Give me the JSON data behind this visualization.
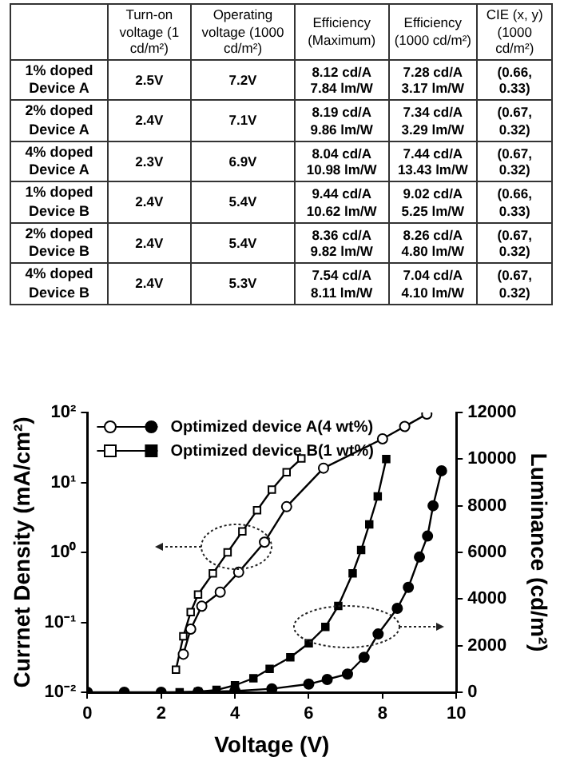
{
  "chart_data": [
    {
      "type": "other",
      "categories": [
        null,
        "Turn-on voltage (1 cd/m²)",
        "Operating voltage (1000 cd/m²)",
        "Efficiency (Maximum)",
        "Efficiency (1000 cd/m²)",
        "CIE (x, y) (1000 cd/m²)"
      ],
      "y_categories": [
        "1% doped Device A",
        "2% doped Device A",
        "4% doped Device A",
        "1% doped Device B",
        "2% doped Device B",
        "4% doped Device B"
      ],
      "cell_labels": [
        [
          "2.5V",
          "7.2V",
          "8.12 cd/A\n7.84 lm/W",
          "7.28 cd/A\n3.17 lm/W",
          "(0.66, 0.33)"
        ],
        [
          "2.4V",
          "7.1V",
          "8.19 cd/A\n9.86 lm/W",
          "7.34 cd/A\n3.29 lm/W",
          "(0.67, 0.32)"
        ],
        [
          "2.3V",
          "6.9V",
          "8.04 cd/A\n10.98 lm/W",
          "7.44 cd/A\n13.43 lm/W",
          "(0.67, 0.32)"
        ],
        [
          "2.4V",
          "5.4V",
          "9.44 cd/A\n10.62 lm/W",
          "9.02 cd/A\n5.25 lm/W",
          "(0.66, 0.33)"
        ],
        [
          "2.4V",
          "5.4V",
          "8.36 cd/A\n9.82 lm/W",
          "8.26 cd/A\n4.80 lm/W",
          "(0.67, 0.32)"
        ],
        [
          "2.4V",
          "5.3V",
          "7.54 cd/A\n8.11 lm/W",
          "7.04 cd/A\n4.10 lm/W",
          "(0.67, 0.32)"
        ]
      ]
    },
    {
      "type": "line",
      "xlabel": "Voltage (V)",
      "ylabel": "Currnet Density (mA/cm²)",
      "y2label": "Luminance (cd/m²)",
      "xlim": [
        0,
        10
      ],
      "xticks": [
        0,
        2,
        4,
        6,
        8,
        10
      ],
      "log": "y",
      "ylim": [
        0.01,
        100
      ],
      "yticks": [
        {
          "value": 0.01,
          "label": "10⁻²"
        },
        {
          "value": 0.1,
          "label": "10⁻¹"
        },
        {
          "value": 1,
          "label": "10⁰"
        },
        {
          "value": 10,
          "label": "10¹"
        },
        {
          "value": 100,
          "label": "10²"
        }
      ],
      "y2lim": [
        0,
        12000
      ],
      "y2ticks": [
        0,
        2000,
        4000,
        6000,
        8000,
        10000,
        12000
      ],
      "grid": false,
      "legend": "top left",
      "series": [
        {
          "color": "#000000",
          "marker": "circle",
          "axis": "y",
          "x": [
            2.6,
            2.8,
            3.1,
            3.6,
            4.1,
            4.8,
            5.4,
            6.4,
            8.0,
            8.6,
            9.2
          ],
          "values": [
            0.035,
            0.08,
            0.17,
            0.27,
            0.52,
            1.4,
            4.5,
            16,
            42,
            63,
            95
          ]
        },
        {
          "color": "#000000",
          "marker": "square",
          "axis": "y",
          "x": [
            2.4,
            2.6,
            2.8,
            3.0,
            3.4,
            3.8,
            4.2,
            4.6,
            5.0,
            5.4,
            5.8
          ],
          "values": [
            0.021,
            0.063,
            0.14,
            0.25,
            0.5,
            1.0,
            2.0,
            4.0,
            7.9,
            14,
            22
          ]
        },
        {
          "name": "Optimized device A(4 wt%)",
          "color": "#000000",
          "marker": "circle",
          "axis": "y2",
          "x": [
            0,
            1,
            2,
            3,
            4,
            5,
            6,
            6.5,
            7.05,
            7.5,
            7.88,
            8.4,
            8.7,
            9.0,
            9.22,
            9.37,
            9.6
          ],
          "values": [
            0,
            0,
            0,
            10,
            50,
            150,
            350,
            550,
            780,
            1500,
            2500,
            3600,
            4500,
            5800,
            6700,
            8000,
            9500
          ]
        },
        {
          "name": "Optimized device B(1 wt%)",
          "color": "#000000",
          "marker": "square",
          "axis": "y2",
          "x": [
            2.5,
            3,
            3.5,
            4,
            4.5,
            4.94,
            5.5,
            6.0,
            6.45,
            6.8,
            7.19,
            7.42,
            7.64,
            7.87,
            8.1
          ],
          "values": [
            0,
            30,
            100,
            300,
            600,
            1000,
            1500,
            2100,
            2800,
            3700,
            5100,
            6100,
            7200,
            8400,
            10000
          ]
        }
      ]
    }
  ]
}
